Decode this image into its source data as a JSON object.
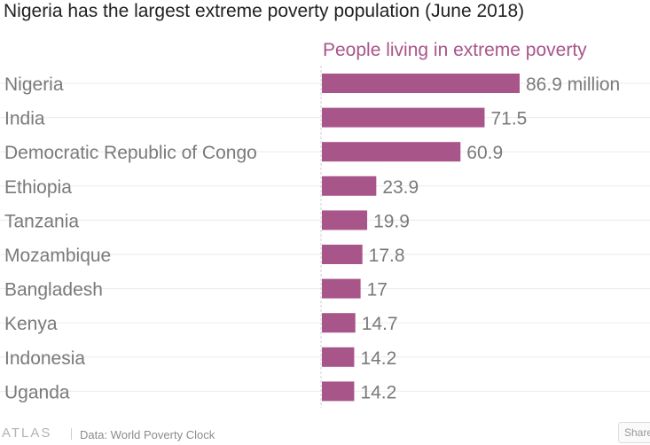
{
  "title": "Nigeria has the largest extreme poverty population (June 2018)",
  "chart_data": {
    "type": "bar",
    "orientation": "horizontal",
    "series": [
      {
        "name": "People living in extreme poverty",
        "values": [
          86.9,
          71.5,
          60.9,
          23.9,
          19.9,
          17.8,
          17,
          14.7,
          14.2,
          14.2
        ]
      }
    ],
    "categories": [
      "Nigeria",
      "India",
      "Democratic Republic of Congo",
      "Ethiopia",
      "Tanzania",
      "Mozambique",
      "Bangladesh",
      "Kenya",
      "Indonesia",
      "Uganda"
    ],
    "value_labels": [
      "86.9 million",
      "71.5",
      "60.9",
      "23.9",
      "19.9",
      "17.8",
      "17",
      "14.7",
      "14.2",
      "14.2"
    ],
    "xlim": [
      0,
      86.9
    ],
    "grid": true,
    "colors": {
      "bar": "#a8558a",
      "header": "#a8558a",
      "category_label": "#7a7a7a",
      "value_label": "#7a7a7a"
    }
  },
  "footer": {
    "brand": "ATLAS",
    "source": "Data: World Poverty Clock",
    "share_label": "Share"
  }
}
